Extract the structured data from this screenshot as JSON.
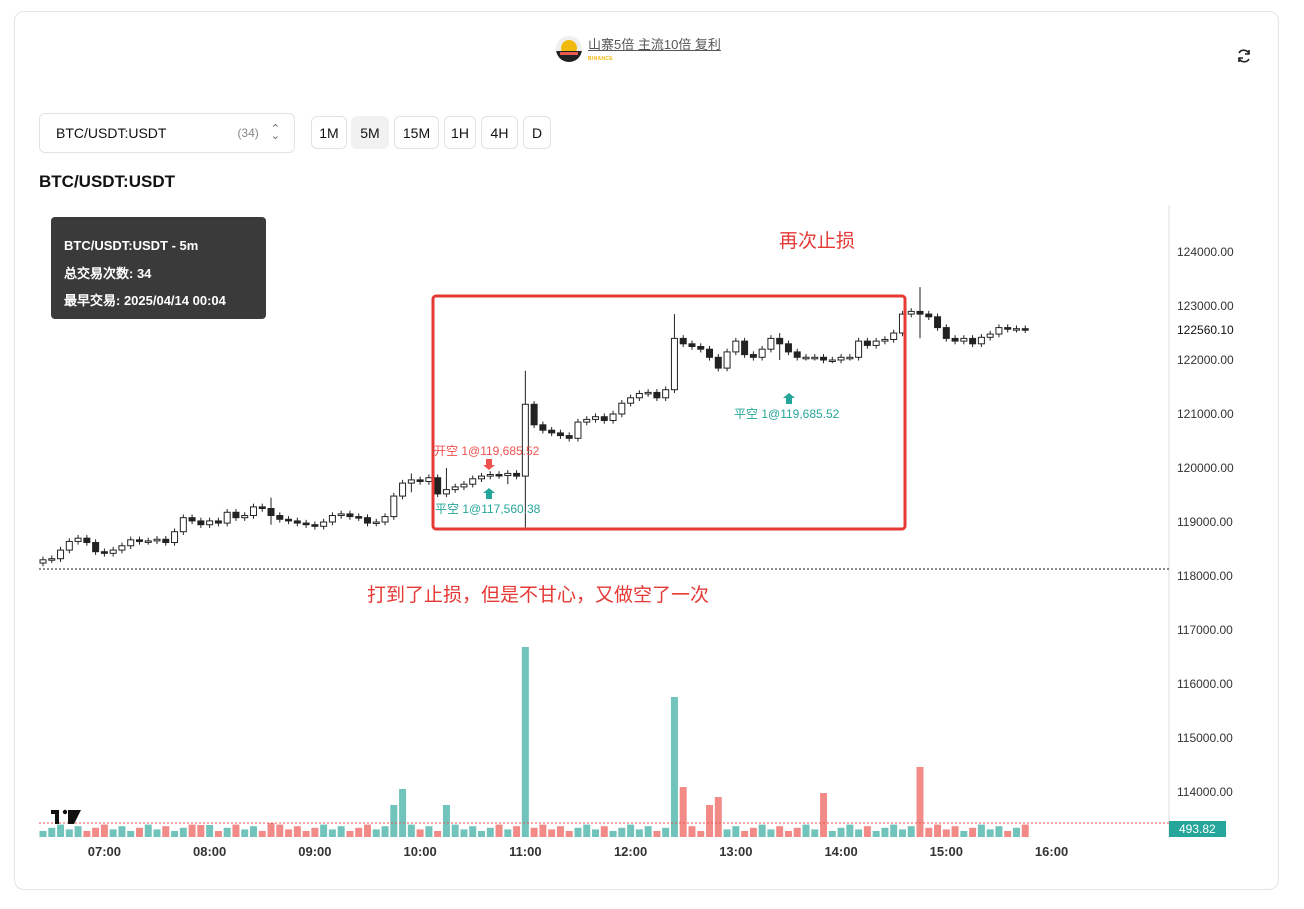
{
  "header": {
    "title": "山寨5倍 主流10倍 复利",
    "brand": "BINANCE"
  },
  "symbol_select": {
    "value": "BTC/USDT:USDT",
    "count": "(34)"
  },
  "timeframes": [
    "1M",
    "5M",
    "15M",
    "1H",
    "4H",
    "D"
  ],
  "active_timeframe": "5M",
  "chart_title": "BTC/USDT:USDT",
  "tooltip": {
    "line1": "BTC/USDT:USDT - 5m",
    "line2": "总交易次数: 34",
    "line3": "最早交易: 2025/04/14 00:04"
  },
  "annotations": {
    "stop_again": "再次止损",
    "hit_stop": "打到了止损，但是不甘心，又做空了一次"
  },
  "trade_markers": {
    "open_short": "开空 1@119,685.52",
    "close_short_1": "平空 1@117,560.38",
    "close_short_2": "平空 1@119,685.52"
  },
  "colors": {
    "up": "#26a69a",
    "down": "#ef5350",
    "annotation": "#e53935",
    "vol_up": "#71c4bb",
    "vol_down": "#f28b88"
  },
  "chart_data": {
    "type": "candlestick",
    "title": "",
    "interval": "5m",
    "x_tick_labels": [
      "07:00",
      "08:00",
      "09:00",
      "10:00",
      "11:00",
      "12:00",
      "13:00",
      "14:00",
      "15:00",
      "16:00"
    ],
    "y_tick_labels": [
      "124000.00",
      "123000.00",
      "122000.00",
      "121000.00",
      "120000.00",
      "119000.00",
      "118000.00",
      "117000.00",
      "116000.00",
      "115000.00",
      "114000.00"
    ],
    "ylim": [
      113300,
      124800
    ],
    "last_price": "122560.10",
    "last_price_value": 122560.1,
    "last_volume": "493.82",
    "start_time": "06:25",
    "closes": [
      118300,
      118320,
      118480,
      118640,
      118700,
      118620,
      118450,
      118420,
      118480,
      118560,
      118670,
      118640,
      118650,
      118680,
      118620,
      118820,
      119080,
      119020,
      118950,
      119020,
      118980,
      119180,
      119080,
      119120,
      119280,
      119250,
      119120,
      119050,
      119020,
      118980,
      118950,
      118920,
      119000,
      119120,
      119150,
      119100,
      119080,
      118980,
      119000,
      119100,
      119480,
      119720,
      119780,
      119750,
      119820,
      119520,
      119600,
      119650,
      119700,
      119800,
      119850,
      119880,
      119860,
      119900,
      119850,
      121180,
      120800,
      120700,
      120650,
      120600,
      120550,
      120850,
      120900,
      120950,
      120880,
      121000,
      121200,
      121300,
      121380,
      121400,
      121300,
      121450,
      122400,
      122300,
      122250,
      122200,
      122050,
      121850,
      122150,
      122350,
      122100,
      122050,
      122200,
      122400,
      122300,
      122150,
      122050,
      122050,
      122050,
      122000,
      122000,
      122050,
      122050,
      122350,
      122270,
      122350,
      122380,
      122500,
      122850,
      122900,
      122850,
      122800,
      122600,
      122400,
      122350,
      122400,
      122300,
      122420,
      122480,
      122600,
      122570,
      122580,
      122560
    ]
  }
}
